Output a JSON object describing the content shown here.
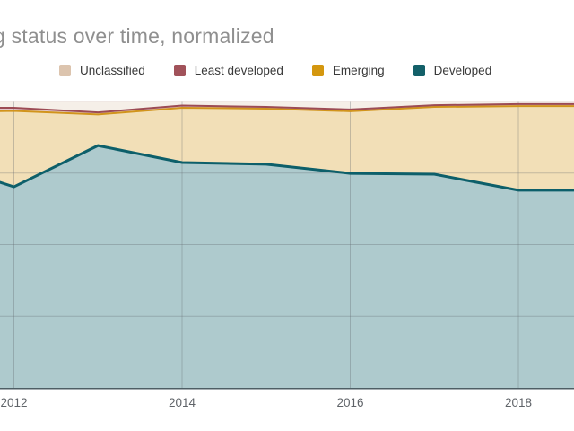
{
  "title": "g status over time, normalized",
  "legend": {
    "items": [
      {
        "label": "Unclassified",
        "color": "#dcc4ae"
      },
      {
        "label": "Least developed",
        "color": "#a1525a"
      },
      {
        "label": "Emerging",
        "color": "#d4970f"
      },
      {
        "label": "Developed",
        "color": "#136069"
      }
    ]
  },
  "x_axis": {
    "tick_labels": [
      "2012",
      "2014",
      "2016",
      "2018"
    ]
  },
  "chart_data": {
    "type": "area",
    "stacked": true,
    "normalized": true,
    "title": "g status over time, normalized",
    "x": [
      2011.8,
      2012,
      2013,
      2014,
      2015,
      2016,
      2017,
      2018,
      2018.7
    ],
    "x_ticks": [
      2012,
      2014,
      2016,
      2018
    ],
    "x_tick_labels": [
      "2012",
      "2014",
      "2016",
      "2018"
    ],
    "ylim": [
      0,
      100
    ],
    "grid": true,
    "legend_position": "top",
    "stack_order": "bottom_to_top",
    "series": [
      {
        "name": "Developed",
        "line_color": "#0d5f6a",
        "fill_color": "#aecacd",
        "line_width": 3,
        "values": [
          72.1,
          70.2,
          84.6,
          78.7,
          78.1,
          74.9,
          74.6,
          69.0,
          69.0
        ]
      },
      {
        "name": "Emerging",
        "line_color": "#d1941c",
        "fill_color": "#f2dfb7",
        "line_width": 2,
        "values": [
          24.5,
          26.5,
          10.9,
          19.1,
          19.4,
          21.7,
          23.5,
          29.4,
          29.4
        ]
      },
      {
        "name": "Least developed",
        "line_color": "#9c4b54",
        "fill_color": "#e2c6c9",
        "line_width": 2,
        "values": [
          1.2,
          1.1,
          0.7,
          0.8,
          0.6,
          0.6,
          0.6,
          0.7,
          0.7
        ]
      },
      {
        "name": "Unclassified",
        "line_color": null,
        "fill_color": "#f5efe8",
        "line_width": 0,
        "values": [
          2.2,
          2.2,
          3.8,
          1.4,
          1.9,
          2.8,
          1.3,
          0.9,
          0.9
        ]
      }
    ]
  }
}
